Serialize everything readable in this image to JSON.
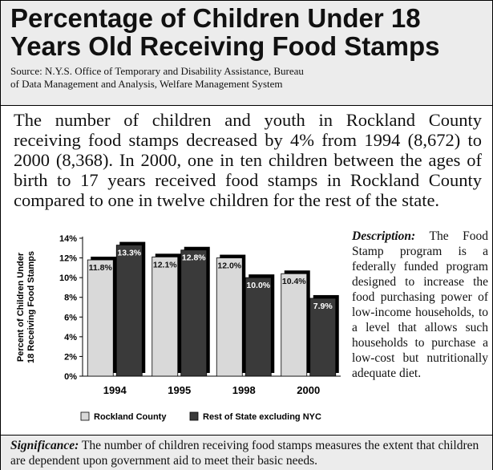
{
  "header": {
    "title_line1": "Percentage of Children Under 18",
    "title_line2": "Years Old Receiving Food Stamps",
    "source_line1": "Source: N.Y.S. Office of Temporary and Disability Assistance, Bureau",
    "source_line2": "of Data Management and Analysis, Welfare Management System"
  },
  "intro": "The number of children and youth in Rockland County receiving food stamps decreased by 4% from 1994 (8,672) to 2000 (8,368). In 2000, one in ten children between the ages of birth to 17 years received food stamps in Rockland County compared to one in twelve children for the rest of the state.",
  "description": {
    "label": "Description:",
    "text": "The Food Stamp program is a federally funded program designed to increase the food purchasing power of low-income households, to a level that allows such households to purchase a low-cost but nutritionally adequate diet."
  },
  "significance": {
    "label": "Significance:",
    "text": "The number of children receiving food stamps measures the extent that children are dependent upon government aid to meet their basic needs."
  },
  "chart_data": {
    "type": "bar",
    "categories": [
      "1994",
      "1995",
      "1998",
      "2000"
    ],
    "series": [
      {
        "name": "Rockland County",
        "values": [
          11.8,
          12.1,
          12.0,
          10.4
        ],
        "labels": [
          "11.8%",
          "12.1%",
          "12.0%",
          "10.4%"
        ],
        "color": "#d9d9d9"
      },
      {
        "name": "Rest of State excluding NYC",
        "values": [
          13.3,
          12.8,
          10.0,
          7.9
        ],
        "labels": [
          "13.3%",
          "12.8%",
          "10.0%",
          "7.9%"
        ],
        "color": "#3a3a3a"
      }
    ],
    "ylabel_line1": "Percent of Children Under",
    "ylabel_line2": "18 Receiving Food Stamps",
    "yticks": [
      "0%",
      "2%",
      "4%",
      "6%",
      "8%",
      "10%",
      "12%",
      "14%"
    ],
    "ylim": [
      0,
      14
    ],
    "grid": false,
    "legend_position": "bottom"
  }
}
